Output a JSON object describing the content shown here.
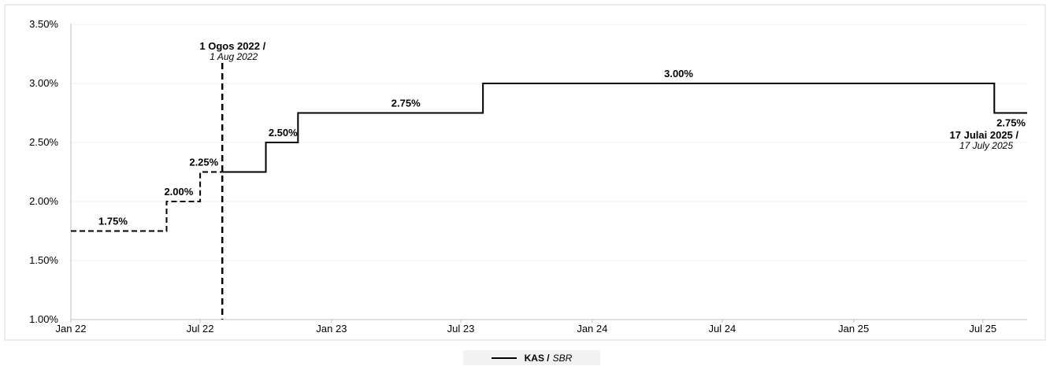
{
  "chart_data": {
    "type": "line",
    "title": "",
    "xlabel": "",
    "ylabel": "",
    "ylim": [
      1.0,
      3.5
    ],
    "yticks": [
      "1.00%",
      "1.50%",
      "2.00%",
      "2.50%",
      "3.00%",
      "3.50%"
    ],
    "ytick_values": [
      1.0,
      1.5,
      2.0,
      2.5,
      3.0,
      3.5
    ],
    "xlim": [
      "2022-01-01",
      "2025-09-01"
    ],
    "xticks": [
      {
        "label": "Jan 22",
        "date": "2022-01-01"
      },
      {
        "label": "Jul 22",
        "date": "2022-07-01"
      },
      {
        "label": "Jan 23",
        "date": "2023-01-01"
      },
      {
        "label": "Jul 23",
        "date": "2023-07-01"
      },
      {
        "label": "Jan 24",
        "date": "2024-01-01"
      },
      {
        "label": "Jul 24",
        "date": "2024-07-01"
      },
      {
        "label": "Jan 25",
        "date": "2025-01-01"
      },
      {
        "label": "Jul 25",
        "date": "2025-07-01"
      }
    ],
    "grid": true,
    "legend_position": "bottom-center",
    "series": [
      {
        "name": "KAS / SBR",
        "name_main": "KAS /",
        "name_italic": "SBR",
        "style": "solid",
        "color": "#000000",
        "x": [
          "2022-08-01",
          "2022-10-01",
          "2022-11-15",
          "2023-08-01",
          "2025-07-17",
          "2025-09-01"
        ],
        "y": [
          2.25,
          2.5,
          2.75,
          3.0,
          2.75,
          2.75
        ]
      },
      {
        "name": "",
        "style": "dashed",
        "color": "#000000",
        "x": [
          "2022-01-01",
          "2022-05-15",
          "2022-07-01",
          "2022-08-01"
        ],
        "y": [
          1.75,
          2.0,
          2.25,
          2.25
        ]
      }
    ],
    "data_labels": [
      {
        "text": "1.75%",
        "date": "2022-03-01",
        "value": 1.75
      },
      {
        "text": "2.00%",
        "date": "2022-06-01",
        "value": 2.0
      },
      {
        "text": "2.25%",
        "date": "2022-07-15",
        "value": 2.25
      },
      {
        "text": "2.50%",
        "date": "2022-10-25",
        "value": 2.5
      },
      {
        "text": "2.75%",
        "date": "2023-04-15",
        "value": 2.75
      },
      {
        "text": "3.00%",
        "date": "2024-05-01",
        "value": 3.0
      },
      {
        "text": "2.75%",
        "date": "2025-08-20",
        "value": 2.75
      }
    ],
    "annotations": [
      {
        "date": "2022-08-01",
        "bold": "1 Ogos 2022 /",
        "italic": "1 Aug 2022",
        "marker": "dashed-vertical-line"
      },
      {
        "date": "2025-07-17",
        "bold": "17 Julai 2025 /",
        "italic": "17 July 2025"
      }
    ]
  }
}
